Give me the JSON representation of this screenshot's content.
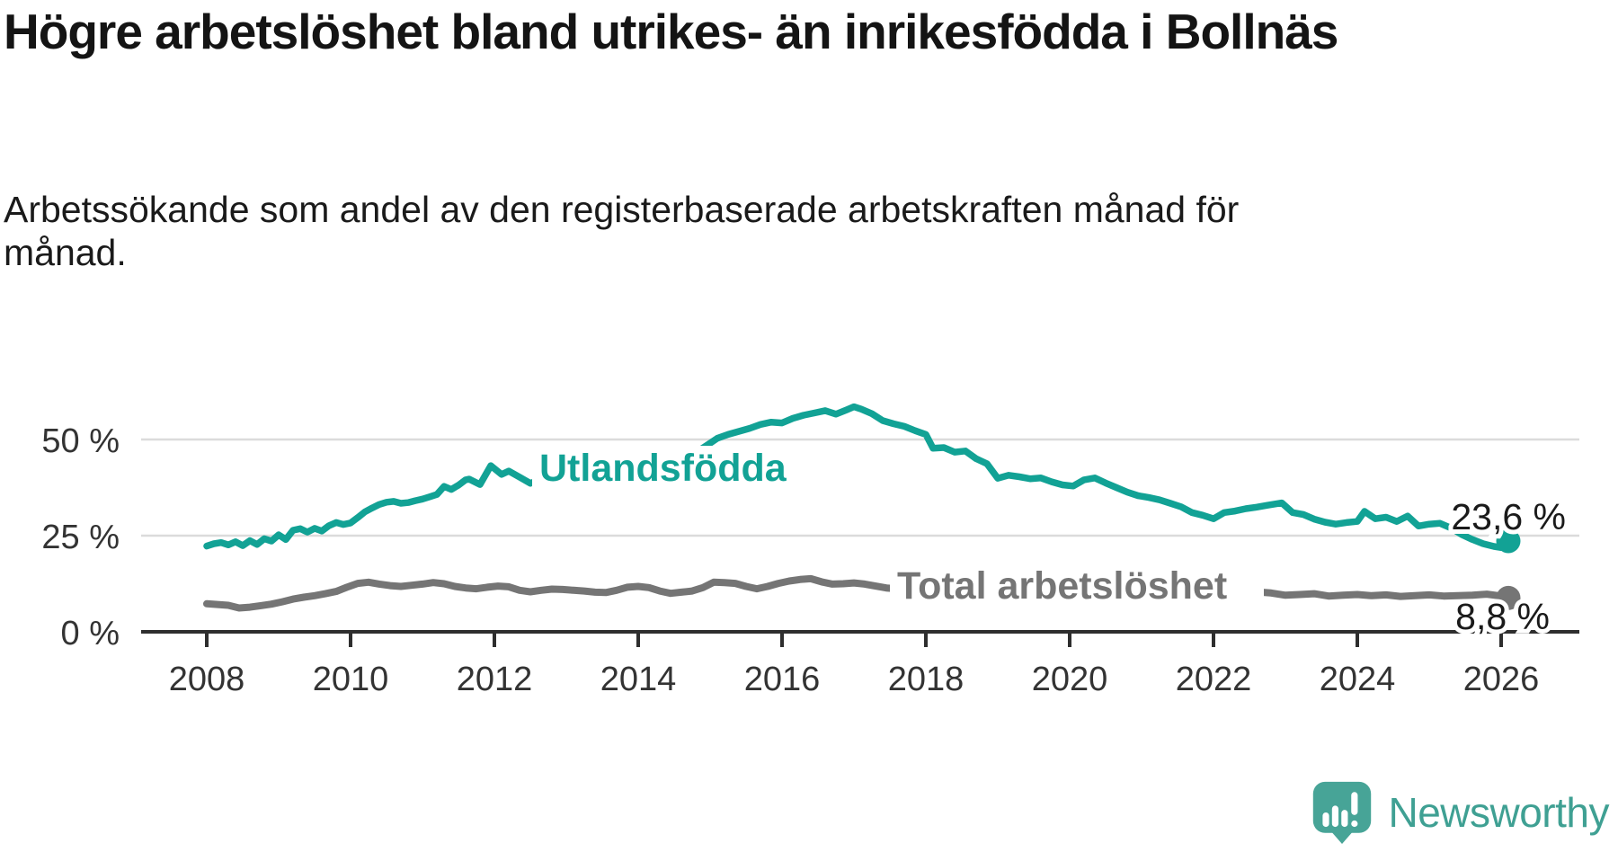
{
  "header": {
    "title": "Högre arbetslöshet bland utrikes- än inrikesfödda i Bollnäs",
    "subtitle": "Arbetssökande som andel av den registerbaserade arbetskraften månad för månad."
  },
  "branding": {
    "logo_text": "Newsworthy",
    "logo_color": "#47a497",
    "logo_text_color": "#3fa093"
  },
  "colors": {
    "foreign_born_line": "#12a295",
    "total_line": "#757575",
    "gridline": "#dbdbdb",
    "axis": "#2e2e2e",
    "text_dark": "#1a1a1a",
    "tick_text": "#333333"
  },
  "chart_data": {
    "type": "line",
    "title": "Högre arbetslöshet bland utrikes- än inrikesfödda i Bollnäs",
    "subtitle": "Arbetssökande som andel av den registerbaserade arbetskraften månad för månad.",
    "unit": "%",
    "xlim": [
      2008,
      2026.2
    ],
    "ylim": [
      0,
      62
    ],
    "grid": "horizontal",
    "x_ticks": [
      2008,
      2010,
      2012,
      2014,
      2016,
      2018,
      2020,
      2022,
      2024,
      2026
    ],
    "x_tick_labels": [
      "2008",
      "2010",
      "2012",
      "2014",
      "2016",
      "2018",
      "2020",
      "2022",
      "2024",
      "2026"
    ],
    "y_ticks": [
      {
        "value": 0,
        "label": "0 %"
      },
      {
        "value": 25,
        "label": "25 %"
      },
      {
        "value": 50,
        "label": "50 %"
      }
    ],
    "series": [
      {
        "name": "Utlandsfödda",
        "color": "#12a295",
        "end_value": 23.6,
        "end_label": "23,6 %",
        "points": [
          [
            2008.0,
            22.3
          ],
          [
            2008.1,
            22.9
          ],
          [
            2008.2,
            23.2
          ],
          [
            2008.3,
            22.6
          ],
          [
            2008.4,
            23.4
          ],
          [
            2008.5,
            22.4
          ],
          [
            2008.6,
            23.7
          ],
          [
            2008.7,
            22.7
          ],
          [
            2008.8,
            24.2
          ],
          [
            2008.9,
            23.6
          ],
          [
            2009.0,
            25.2
          ],
          [
            2009.1,
            24.0
          ],
          [
            2009.2,
            26.4
          ],
          [
            2009.3,
            26.8
          ],
          [
            2009.4,
            25.9
          ],
          [
            2009.5,
            26.9
          ],
          [
            2009.6,
            26.2
          ],
          [
            2009.7,
            27.6
          ],
          [
            2009.8,
            28.4
          ],
          [
            2009.9,
            27.9
          ],
          [
            2010.0,
            28.3
          ],
          [
            2010.1,
            29.7
          ],
          [
            2010.2,
            31.2
          ],
          [
            2010.3,
            32.2
          ],
          [
            2010.4,
            33.1
          ],
          [
            2010.5,
            33.7
          ],
          [
            2010.6,
            33.9
          ],
          [
            2010.7,
            33.4
          ],
          [
            2010.8,
            33.6
          ],
          [
            2010.9,
            34.1
          ],
          [
            2011.0,
            34.5
          ],
          [
            2011.1,
            35.1
          ],
          [
            2011.2,
            35.7
          ],
          [
            2011.3,
            37.8
          ],
          [
            2011.4,
            37.0
          ],
          [
            2011.5,
            38.1
          ],
          [
            2011.6,
            39.5
          ],
          [
            2011.65,
            39.7
          ],
          [
            2011.8,
            38.3
          ],
          [
            2011.95,
            43.2
          ],
          [
            2012.1,
            40.9
          ],
          [
            2012.2,
            41.8
          ],
          [
            2012.35,
            40.2
          ],
          [
            2012.5,
            38.6
          ],
          [
            2012.6,
            39.3
          ],
          [
            2012.7,
            38.2
          ],
          [
            2012.85,
            38.9
          ],
          [
            2013.0,
            39.2
          ],
          [
            2013.15,
            38.2
          ],
          [
            2013.3,
            38.9
          ],
          [
            2013.45,
            38.1
          ],
          [
            2013.6,
            39.1
          ],
          [
            2013.75,
            39.9
          ],
          [
            2013.9,
            41.0
          ],
          [
            2014.05,
            42.2
          ],
          [
            2014.2,
            43.1
          ],
          [
            2014.35,
            43.9
          ],
          [
            2014.5,
            44.7
          ],
          [
            2014.65,
            45.5
          ],
          [
            2014.8,
            46.6
          ],
          [
            2014.95,
            48.4
          ],
          [
            2015.1,
            50.3
          ],
          [
            2015.25,
            51.3
          ],
          [
            2015.4,
            52.1
          ],
          [
            2015.55,
            52.9
          ],
          [
            2015.7,
            53.9
          ],
          [
            2015.85,
            54.5
          ],
          [
            2016.0,
            54.3
          ],
          [
            2016.15,
            55.5
          ],
          [
            2016.3,
            56.3
          ],
          [
            2016.45,
            56.9
          ],
          [
            2016.6,
            57.5
          ],
          [
            2016.75,
            56.6
          ],
          [
            2016.9,
            57.7
          ],
          [
            2017.0,
            58.5
          ],
          [
            2017.1,
            57.9
          ],
          [
            2017.25,
            56.7
          ],
          [
            2017.4,
            54.9
          ],
          [
            2017.55,
            54.1
          ],
          [
            2017.7,
            53.4
          ],
          [
            2017.85,
            52.3
          ],
          [
            2018.0,
            51.3
          ],
          [
            2018.1,
            47.7
          ],
          [
            2018.25,
            47.9
          ],
          [
            2018.4,
            46.7
          ],
          [
            2018.55,
            47.0
          ],
          [
            2018.7,
            45.0
          ],
          [
            2018.85,
            43.7
          ],
          [
            2019.0,
            39.9
          ],
          [
            2019.15,
            40.7
          ],
          [
            2019.3,
            40.3
          ],
          [
            2019.45,
            39.8
          ],
          [
            2019.6,
            40.0
          ],
          [
            2019.75,
            39.0
          ],
          [
            2019.9,
            38.2
          ],
          [
            2020.05,
            37.9
          ],
          [
            2020.2,
            39.5
          ],
          [
            2020.35,
            40.0
          ],
          [
            2020.5,
            38.7
          ],
          [
            2020.65,
            37.5
          ],
          [
            2020.8,
            36.3
          ],
          [
            2020.95,
            35.4
          ],
          [
            2021.1,
            34.9
          ],
          [
            2021.25,
            34.3
          ],
          [
            2021.4,
            33.4
          ],
          [
            2021.55,
            32.5
          ],
          [
            2021.7,
            31.0
          ],
          [
            2021.85,
            30.3
          ],
          [
            2022.0,
            29.4
          ],
          [
            2022.15,
            31.0
          ],
          [
            2022.3,
            31.4
          ],
          [
            2022.45,
            32.0
          ],
          [
            2022.6,
            32.4
          ],
          [
            2022.75,
            32.9
          ],
          [
            2022.95,
            33.5
          ],
          [
            2023.1,
            31.0
          ],
          [
            2023.25,
            30.5
          ],
          [
            2023.4,
            29.3
          ],
          [
            2023.55,
            28.5
          ],
          [
            2023.7,
            28.0
          ],
          [
            2023.85,
            28.4
          ],
          [
            2024.0,
            28.7
          ],
          [
            2024.1,
            31.3
          ],
          [
            2024.25,
            29.4
          ],
          [
            2024.4,
            29.8
          ],
          [
            2024.55,
            28.7
          ],
          [
            2024.7,
            30.1
          ],
          [
            2024.85,
            27.5
          ],
          [
            2025.0,
            28.0
          ],
          [
            2025.15,
            28.2
          ],
          [
            2025.3,
            27.0
          ],
          [
            2025.45,
            25.3
          ],
          [
            2025.6,
            24.0
          ],
          [
            2025.75,
            22.9
          ],
          [
            2025.9,
            22.2
          ],
          [
            2026.0,
            21.9
          ],
          [
            2026.1,
            23.6
          ]
        ]
      },
      {
        "name": "Total arbetslöshet",
        "color": "#757575",
        "end_value": 8.8,
        "end_label": "8,8 %",
        "points": [
          [
            2008.0,
            7.3
          ],
          [
            2008.15,
            7.1
          ],
          [
            2008.3,
            6.9
          ],
          [
            2008.45,
            6.2
          ],
          [
            2008.6,
            6.4
          ],
          [
            2008.75,
            6.8
          ],
          [
            2008.9,
            7.2
          ],
          [
            2009.05,
            7.8
          ],
          [
            2009.2,
            8.5
          ],
          [
            2009.35,
            9.0
          ],
          [
            2009.5,
            9.4
          ],
          [
            2009.65,
            9.9
          ],
          [
            2009.8,
            10.5
          ],
          [
            2009.95,
            11.6
          ],
          [
            2010.1,
            12.6
          ],
          [
            2010.25,
            12.9
          ],
          [
            2010.4,
            12.4
          ],
          [
            2010.55,
            12.0
          ],
          [
            2010.7,
            11.8
          ],
          [
            2010.85,
            12.1
          ],
          [
            2011.0,
            12.4
          ],
          [
            2011.15,
            12.8
          ],
          [
            2011.3,
            12.5
          ],
          [
            2011.45,
            11.8
          ],
          [
            2011.6,
            11.4
          ],
          [
            2011.75,
            11.2
          ],
          [
            2011.9,
            11.6
          ],
          [
            2012.05,
            11.9
          ],
          [
            2012.2,
            11.7
          ],
          [
            2012.35,
            10.8
          ],
          [
            2012.5,
            10.4
          ],
          [
            2012.65,
            10.8
          ],
          [
            2012.8,
            11.1
          ],
          [
            2012.95,
            11.0
          ],
          [
            2013.1,
            10.8
          ],
          [
            2013.25,
            10.6
          ],
          [
            2013.4,
            10.3
          ],
          [
            2013.55,
            10.2
          ],
          [
            2013.7,
            10.8
          ],
          [
            2013.85,
            11.6
          ],
          [
            2014.0,
            11.8
          ],
          [
            2014.15,
            11.5
          ],
          [
            2014.3,
            10.6
          ],
          [
            2014.45,
            10.0
          ],
          [
            2014.6,
            10.3
          ],
          [
            2014.75,
            10.6
          ],
          [
            2014.9,
            11.5
          ],
          [
            2015.05,
            12.9
          ],
          [
            2015.2,
            12.8
          ],
          [
            2015.35,
            12.6
          ],
          [
            2015.5,
            11.8
          ],
          [
            2015.65,
            11.2
          ],
          [
            2015.8,
            11.8
          ],
          [
            2015.95,
            12.6
          ],
          [
            2016.1,
            13.2
          ],
          [
            2016.25,
            13.6
          ],
          [
            2016.4,
            13.8
          ],
          [
            2016.55,
            13.0
          ],
          [
            2016.7,
            12.4
          ],
          [
            2016.85,
            12.5
          ],
          [
            2017.0,
            12.7
          ],
          [
            2017.15,
            12.4
          ],
          [
            2017.3,
            11.9
          ],
          [
            2017.45,
            11.4
          ],
          [
            2017.6,
            11.2
          ],
          [
            2017.8,
            11.0
          ],
          [
            2018.0,
            11.3
          ],
          [
            2018.3,
            10.8
          ],
          [
            2018.6,
            10.4
          ],
          [
            2018.9,
            10.2
          ],
          [
            2019.2,
            10.5
          ],
          [
            2019.5,
            10.3
          ],
          [
            2019.8,
            10.6
          ],
          [
            2020.1,
            11.2
          ],
          [
            2020.4,
            12.0
          ],
          [
            2020.7,
            11.6
          ],
          [
            2021.0,
            11.0
          ],
          [
            2021.3,
            10.5
          ],
          [
            2021.6,
            10.0
          ],
          [
            2021.9,
            9.7
          ],
          [
            2022.2,
            9.5
          ],
          [
            2022.5,
            9.5
          ],
          [
            2022.65,
            10.3
          ],
          [
            2022.8,
            10.1
          ],
          [
            2023.0,
            9.5
          ],
          [
            2023.2,
            9.7
          ],
          [
            2023.4,
            9.9
          ],
          [
            2023.6,
            9.3
          ],
          [
            2023.8,
            9.5
          ],
          [
            2024.0,
            9.7
          ],
          [
            2024.2,
            9.4
          ],
          [
            2024.4,
            9.6
          ],
          [
            2024.6,
            9.2
          ],
          [
            2024.8,
            9.4
          ],
          [
            2025.0,
            9.6
          ],
          [
            2025.2,
            9.3
          ],
          [
            2025.4,
            9.4
          ],
          [
            2025.6,
            9.5
          ],
          [
            2025.8,
            9.8
          ],
          [
            2026.0,
            9.3
          ],
          [
            2026.1,
            8.8
          ]
        ]
      }
    ],
    "legend_position": "labels-on-lines",
    "annotations": [
      {
        "series": "Utlandsfödda",
        "text": "23,6 %"
      },
      {
        "series": "Total arbetslöshet",
        "text": "8,8 %"
      }
    ]
  }
}
